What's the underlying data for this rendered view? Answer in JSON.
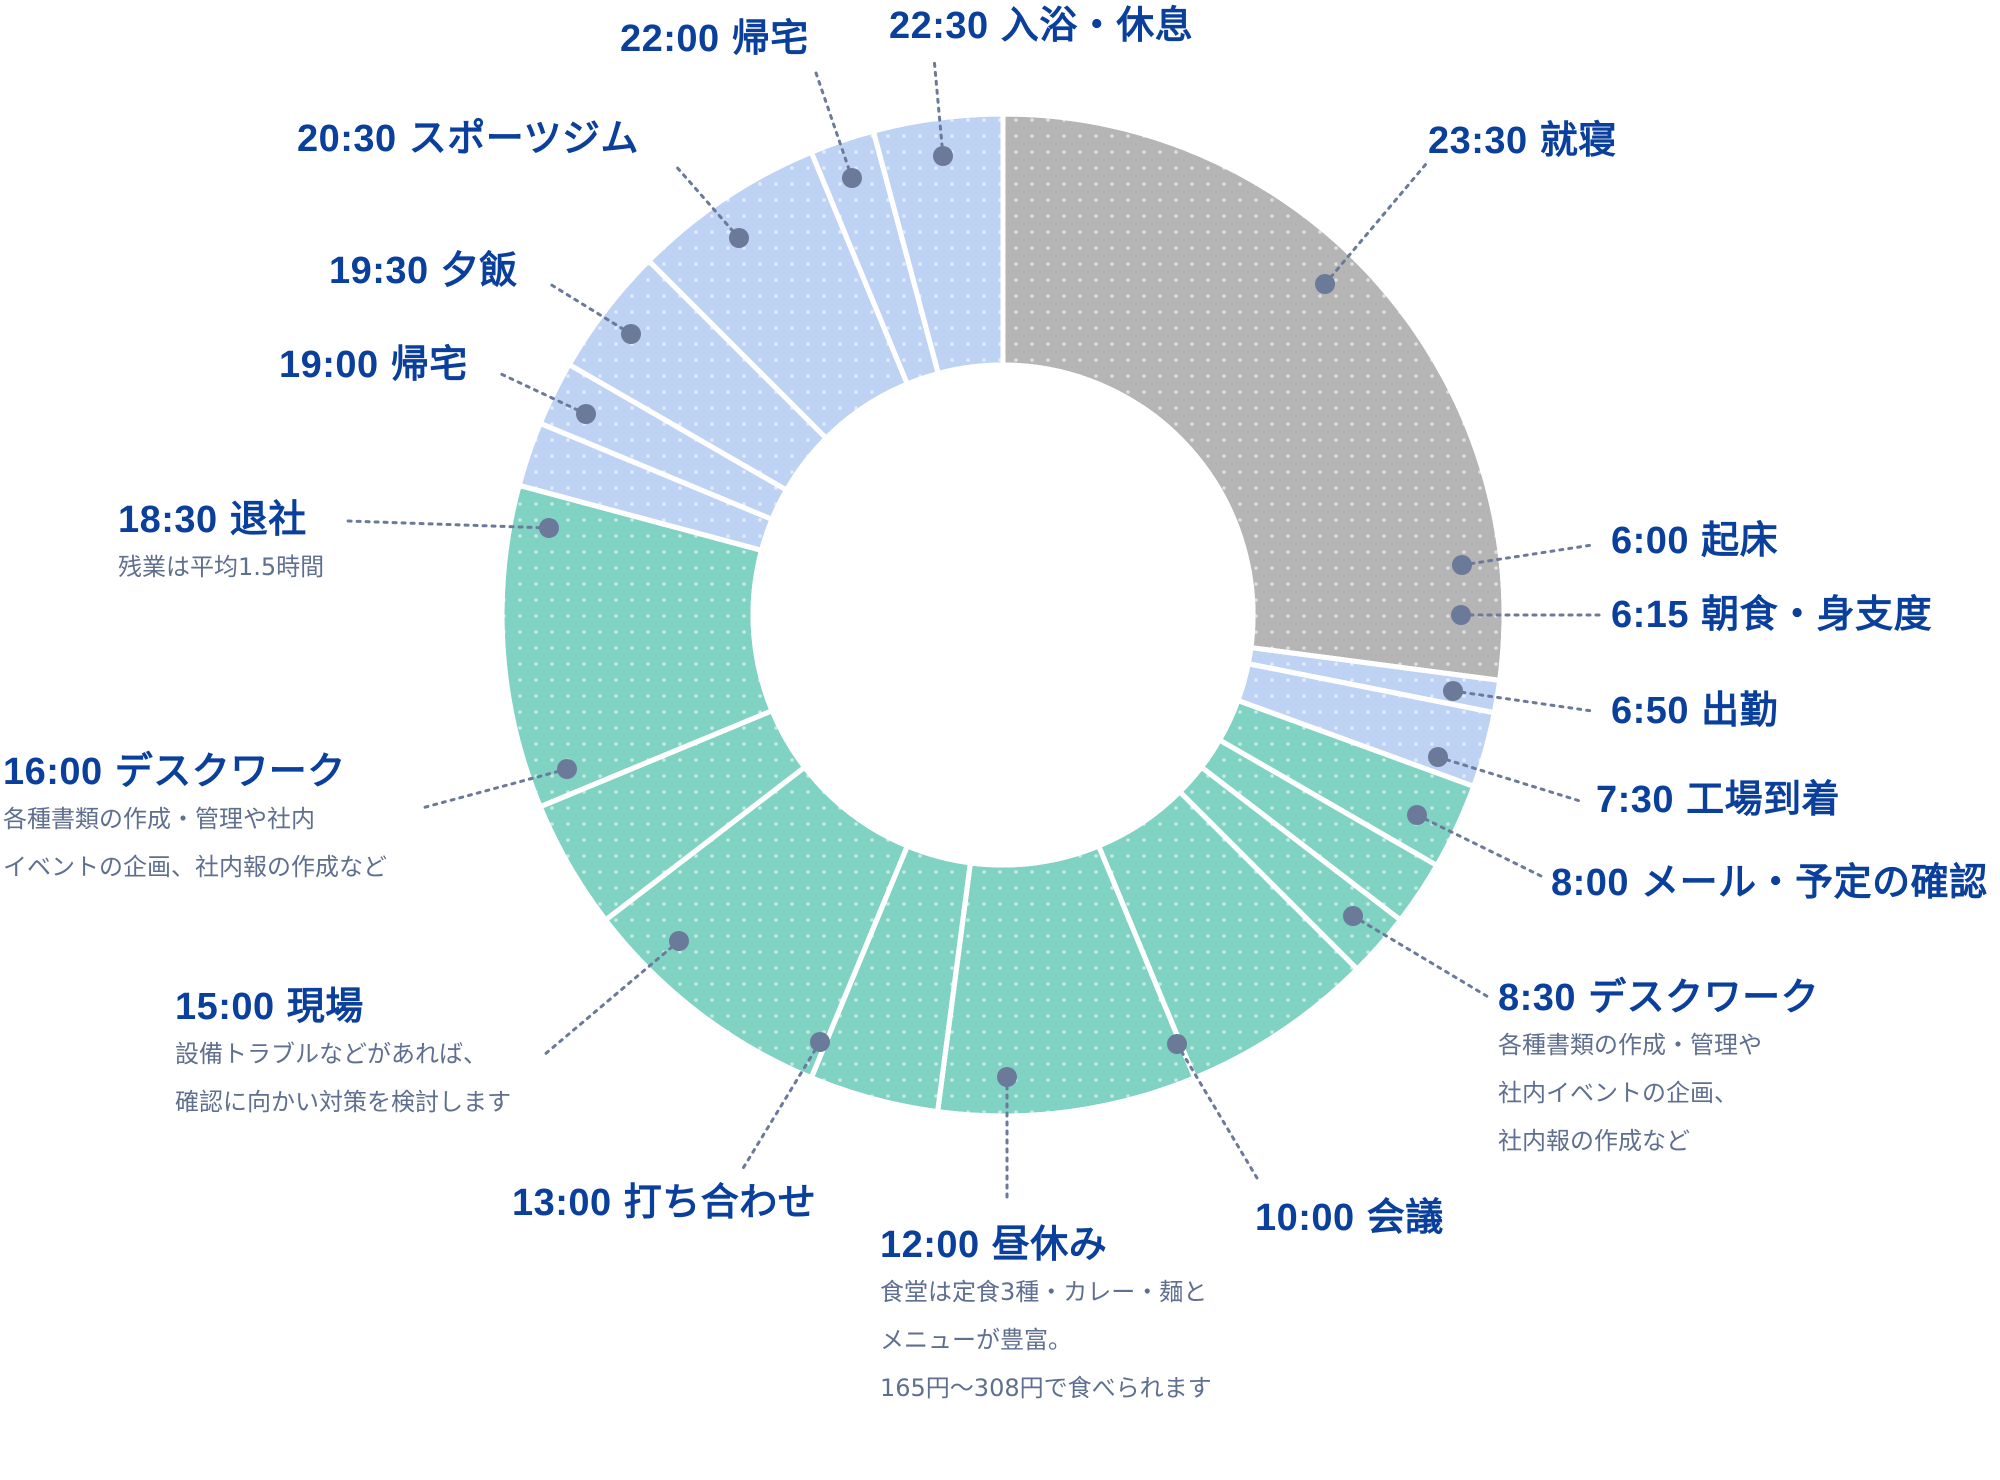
{
  "chart_data": {
    "type": "donut",
    "title": "",
    "start_time": "23:30",
    "colors": {
      "sleep": "#b5b5b5",
      "private": "#bed2f3",
      "work": "#80d2c3",
      "marker": "#6b7a99",
      "label": "#0a3f9c",
      "description": "#5f6f8f"
    },
    "segments": [
      {
        "time": "23:30",
        "label": "就寝",
        "end": "6:00",
        "group": "sleep",
        "description": []
      },
      {
        "time": "6:00",
        "label": "起床",
        "end": "6:15",
        "group": "private",
        "description": []
      },
      {
        "time": "6:15",
        "label": "朝食・身支度",
        "end": "6:50",
        "group": "private",
        "description": []
      },
      {
        "time": "6:50",
        "label": "出勤",
        "end": "7:30",
        "group": "work",
        "description": []
      },
      {
        "time": "7:30",
        "label": "工場到着",
        "end": "8:00",
        "group": "work",
        "description": []
      },
      {
        "time": "8:00",
        "label": "メール・予定の確認",
        "end": "8:30",
        "group": "work",
        "description": []
      },
      {
        "time": "8:30",
        "label": "デスクワーク",
        "end": "10:00",
        "group": "work",
        "description": [
          "各種書類の作成・管理や",
          "社内イベントの企画、",
          "社内報の作成など"
        ]
      },
      {
        "time": "10:00",
        "label": "会議",
        "end": "12:00",
        "group": "work",
        "description": []
      },
      {
        "time": "12:00",
        "label": "昼休み",
        "end": "13:00",
        "group": "work",
        "description": [
          "食堂は定食3種・カレー・麺と",
          "メニューが豊富。",
          "165円〜308円で食べられます"
        ]
      },
      {
        "time": "13:00",
        "label": "打ち合わせ",
        "end": "15:00",
        "group": "work",
        "description": []
      },
      {
        "time": "15:00",
        "label": "現場",
        "end": "16:00",
        "group": "work",
        "description": [
          "設備トラブルなどがあれば、",
          "確認に向かい対策を検討します"
        ]
      },
      {
        "time": "16:00",
        "label": "デスクワーク",
        "end": "18:30",
        "group": "work",
        "description": [
          "各種書類の作成・管理や社内",
          "イベントの企画、社内報の作成など"
        ]
      },
      {
        "time": "18:30",
        "label": "退社",
        "end": "19:00",
        "group": "private",
        "description": [
          "残業は平均1.5時間"
        ]
      },
      {
        "time": "19:00",
        "label": "帰宅",
        "end": "19:30",
        "group": "private",
        "description": []
      },
      {
        "time": "19:30",
        "label": "夕飯",
        "end": "20:30",
        "group": "private",
        "description": []
      },
      {
        "time": "20:30",
        "label": "スポーツジム",
        "end": "22:00",
        "group": "private",
        "description": []
      },
      {
        "time": "22:00",
        "label": "帰宅",
        "end": "22:30",
        "group": "private",
        "description": []
      },
      {
        "time": "22:30",
        "label": "入浴・休息",
        "end": "23:30",
        "group": "private",
        "description": []
      }
    ]
  }
}
